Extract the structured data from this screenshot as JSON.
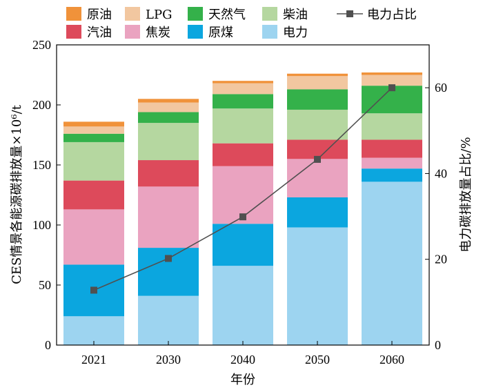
{
  "chart_data": {
    "type": "bar",
    "stacked": true,
    "categories": [
      "2021",
      "2030",
      "2040",
      "2050",
      "2060"
    ],
    "series": [
      {
        "name": "电力",
        "color": "#9dd4f0",
        "values": [
          24,
          41,
          66,
          98,
          136
        ]
      },
      {
        "name": "原煤",
        "color": "#0ba6df",
        "values": [
          43,
          40,
          35,
          25,
          11
        ]
      },
      {
        "name": "焦炭",
        "color": "#eaa3c0",
        "values": [
          46,
          51,
          48,
          32,
          9
        ]
      },
      {
        "name": "汽油",
        "color": "#dd4a5b",
        "values": [
          24,
          22,
          19,
          16,
          15
        ]
      },
      {
        "name": "柴油",
        "color": "#b5d7a0",
        "values": [
          32,
          31,
          29,
          25,
          22
        ]
      },
      {
        "name": "天然气",
        "color": "#34b14a",
        "values": [
          7,
          9,
          12,
          17,
          23
        ]
      },
      {
        "name": "LPG",
        "color": "#f2c7a0",
        "values": [
          6,
          8,
          9,
          11,
          9
        ]
      },
      {
        "name": "原油",
        "color": "#f0923a",
        "values": [
          4,
          3,
          2,
          2,
          2
        ]
      }
    ],
    "line": {
      "name": "电力占比",
      "color": "#505050",
      "axis": "right",
      "values": [
        12.8,
        20.2,
        29.9,
        43.3,
        60.0
      ]
    },
    "xlabel": "年份",
    "ylabel": "CES情景各能源碳排放量×10⁶/t",
    "y2label": "电力碳排放量占比/%",
    "ylim": [
      0,
      250
    ],
    "yticks": [
      0,
      50,
      100,
      150,
      200,
      250
    ],
    "y2lim": [
      0,
      70
    ],
    "y2ticks": [
      0,
      20,
      40,
      60
    ],
    "grid": false,
    "legend": {
      "placement": "top",
      "rows": [
        [
          "原油",
          "LPG",
          "天然气",
          "柴油",
          "电力占比"
        ],
        [
          "汽油",
          "焦炭",
          "原煤",
          "电力"
        ]
      ]
    }
  }
}
